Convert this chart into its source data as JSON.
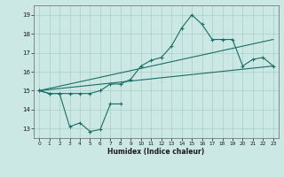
{
  "xlabel": "Humidex (Indice chaleur)",
  "ylabel": "",
  "bg_color": "#cce8e4",
  "grid_color": "#aacfca",
  "line_color": "#1a6e65",
  "xlim": [
    -0.5,
    23.5
  ],
  "ylim": [
    12.5,
    19.5
  ],
  "xticks": [
    0,
    1,
    2,
    3,
    4,
    5,
    6,
    7,
    8,
    9,
    10,
    11,
    12,
    13,
    14,
    15,
    16,
    17,
    18,
    19,
    20,
    21,
    22,
    23
  ],
  "yticks": [
    13,
    14,
    15,
    16,
    17,
    18,
    19
  ],
  "series": [
    {
      "x": [
        0,
        1,
        2,
        3,
        4,
        5,
        6,
        7,
        8
      ],
      "y": [
        15.0,
        14.85,
        14.85,
        13.1,
        13.3,
        12.85,
        12.95,
        14.3,
        14.3
      ],
      "marker": true
    },
    {
      "x": [
        0,
        1,
        2,
        3,
        4,
        5,
        6,
        7,
        8,
        9,
        10,
        11,
        12,
        13,
        14,
        15,
        16,
        17,
        18,
        19,
        20,
        21,
        22,
        23
      ],
      "y": [
        15.0,
        14.85,
        14.85,
        14.85,
        14.85,
        14.85,
        15.0,
        15.35,
        15.35,
        15.6,
        16.3,
        16.6,
        16.75,
        17.35,
        18.3,
        19.0,
        18.5,
        17.7,
        17.7,
        17.7,
        16.3,
        16.65,
        16.75,
        16.3
      ],
      "marker": true
    },
    {
      "x": [
        0,
        23
      ],
      "y": [
        15.0,
        17.7
      ],
      "marker": false
    },
    {
      "x": [
        0,
        23
      ],
      "y": [
        15.0,
        16.3
      ],
      "marker": false
    }
  ]
}
